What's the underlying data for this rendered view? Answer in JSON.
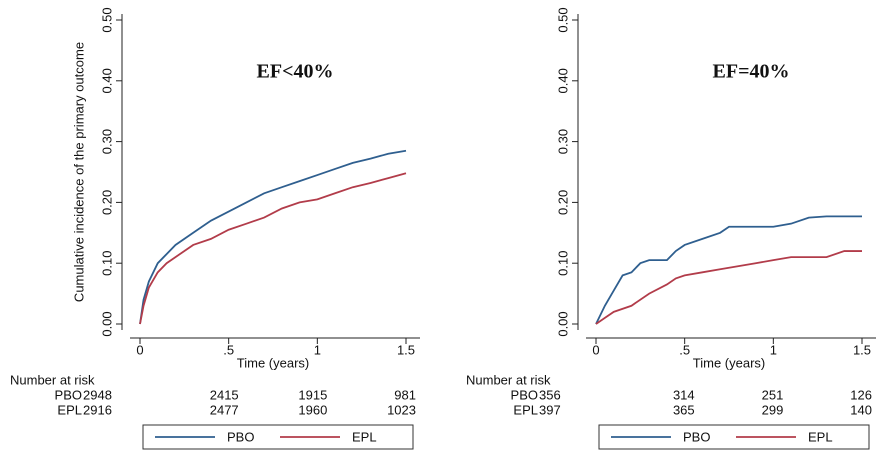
{
  "chart_data": [
    {
      "type": "line",
      "title": "EF<40%",
      "ylabel": "Cumulative incidence of the primary outcome",
      "xlabel": "Time (years)",
      "xlim": [
        0,
        1.5
      ],
      "ylim": [
        0,
        0.5
      ],
      "xticks": [
        0,
        {
          "value": 0.5,
          "label": ".5"
        },
        1,
        1.5
      ],
      "yticks": [
        {
          "value": 0,
          "label": "0.00"
        },
        {
          "value": 0.1,
          "label": "0.10"
        },
        {
          "value": 0.2,
          "label": "0.20"
        },
        {
          "value": 0.3,
          "label": "0.30"
        },
        {
          "value": 0.4,
          "label": "0.40"
        },
        {
          "value": 0.5,
          "label": "0.50"
        }
      ],
      "at_risk_title": "Number at risk",
      "legend": "bottom",
      "series": [
        {
          "name": "PBO",
          "color": "#2f5f8f",
          "x": [
            0,
            0.02,
            0.05,
            0.1,
            0.15,
            0.2,
            0.3,
            0.4,
            0.5,
            0.6,
            0.7,
            0.8,
            0.9,
            1.0,
            1.1,
            1.2,
            1.3,
            1.4,
            1.5
          ],
          "values": [
            0,
            0.04,
            0.07,
            0.1,
            0.115,
            0.13,
            0.15,
            0.17,
            0.185,
            0.2,
            0.215,
            0.225,
            0.235,
            0.245,
            0.255,
            0.265,
            0.272,
            0.28,
            0.285
          ],
          "at_risk": [
            2948,
            2415,
            1915,
            981
          ]
        },
        {
          "name": "EPL",
          "color": "#b23c4a",
          "x": [
            0,
            0.02,
            0.05,
            0.1,
            0.15,
            0.2,
            0.3,
            0.4,
            0.5,
            0.6,
            0.7,
            0.8,
            0.9,
            1.0,
            1.1,
            1.2,
            1.3,
            1.4,
            1.5
          ],
          "values": [
            0,
            0.03,
            0.06,
            0.085,
            0.1,
            0.11,
            0.13,
            0.14,
            0.155,
            0.165,
            0.175,
            0.19,
            0.2,
            0.205,
            0.215,
            0.225,
            0.232,
            0.24,
            0.248
          ],
          "at_risk": [
            2916,
            2477,
            1960,
            1023
          ]
        }
      ]
    },
    {
      "type": "line",
      "title": "EF=40%",
      "xlabel": "Time (years)",
      "xlim": [
        0,
        1.5
      ],
      "ylim": [
        0,
        0.5
      ],
      "xticks": [
        0,
        {
          "value": 0.5,
          "label": ".5"
        },
        1,
        1.5
      ],
      "yticks": [
        {
          "value": 0,
          "label": "0.00"
        },
        {
          "value": 0.1,
          "label": "0.10"
        },
        {
          "value": 0.2,
          "label": "0.20"
        },
        {
          "value": 0.3,
          "label": "0.30"
        },
        {
          "value": 0.4,
          "label": "0.40"
        },
        {
          "value": 0.5,
          "label": "0.50"
        }
      ],
      "at_risk_title": "Number at risk",
      "legend": "bottom",
      "series": [
        {
          "name": "PBO",
          "color": "#2f5f8f",
          "x": [
            0,
            0.05,
            0.1,
            0.15,
            0.2,
            0.25,
            0.3,
            0.4,
            0.45,
            0.5,
            0.6,
            0.7,
            0.75,
            0.9,
            1.0,
            1.1,
            1.2,
            1.3,
            1.5
          ],
          "values": [
            0,
            0.03,
            0.055,
            0.08,
            0.085,
            0.1,
            0.105,
            0.105,
            0.12,
            0.13,
            0.14,
            0.15,
            0.16,
            0.16,
            0.16,
            0.165,
            0.175,
            0.177,
            0.177
          ],
          "at_risk": [
            356,
            314,
            251,
            126
          ]
        },
        {
          "name": "EPL",
          "color": "#b23c4a",
          "x": [
            0,
            0.05,
            0.1,
            0.2,
            0.3,
            0.4,
            0.45,
            0.5,
            0.6,
            0.7,
            0.8,
            0.9,
            1.0,
            1.1,
            1.3,
            1.4,
            1.5
          ],
          "values": [
            0,
            0.01,
            0.02,
            0.03,
            0.05,
            0.065,
            0.075,
            0.08,
            0.085,
            0.09,
            0.095,
            0.1,
            0.105,
            0.11,
            0.11,
            0.12,
            0.12
          ],
          "at_risk": [
            397,
            365,
            299,
            140
          ]
        }
      ]
    }
  ]
}
